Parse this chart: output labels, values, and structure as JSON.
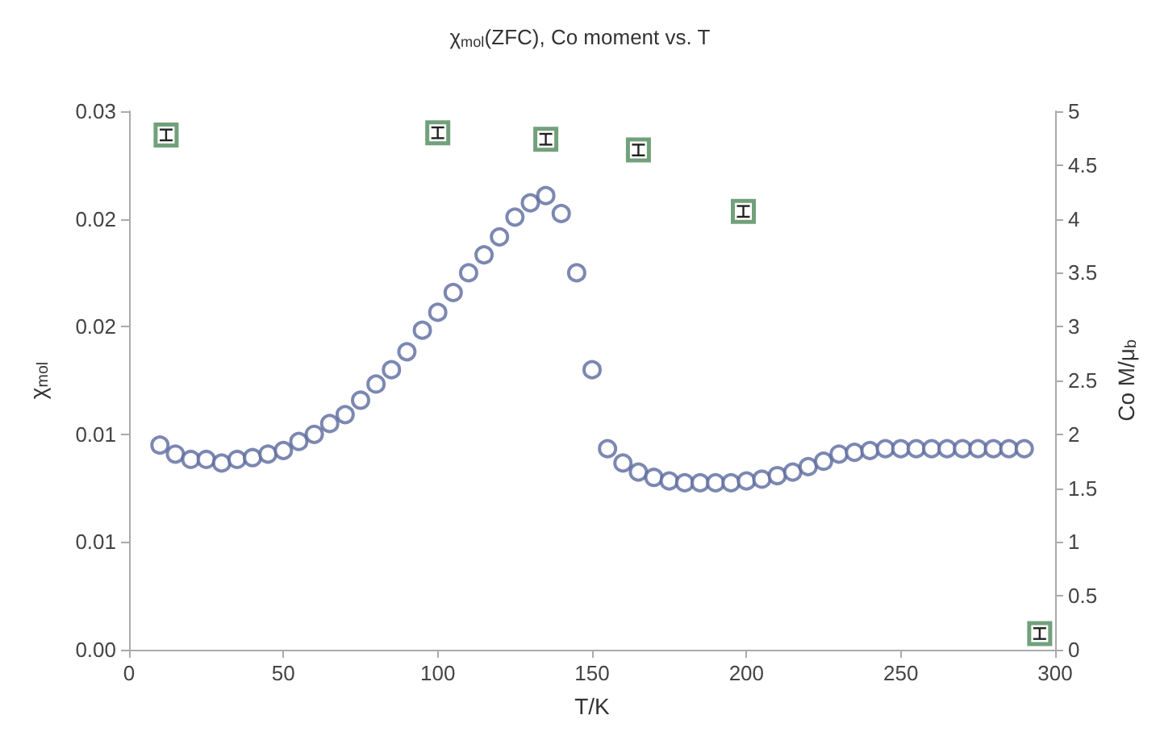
{
  "chart_data": {
    "type": "scatter",
    "title": "χ$_{mol}$(ZFC), Co moment vs. T",
    "xlabel": "T/K",
    "ylabel": "χ$_{mol}$",
    "y2label": "Co M/μ$_{b}$",
    "xlim": [
      0,
      300
    ],
    "xticks": [
      0,
      50,
      100,
      150,
      200,
      250,
      300
    ],
    "ylim": [
      0,
      0.03
    ],
    "yticks": [
      {
        "value": 0,
        "label": "0.00"
      },
      {
        "value": 0.006,
        "label": "0.01"
      },
      {
        "value": 0.012,
        "label": "0.01"
      },
      {
        "value": 0.018,
        "label": "0.02"
      },
      {
        "value": 0.024,
        "label": "0.02"
      },
      {
        "value": 0.03,
        "label": "0.03"
      }
    ],
    "y2lim": [
      0,
      5
    ],
    "y2ticks": [
      0,
      0.5,
      1,
      1.5,
      2,
      2.5,
      3,
      3.5,
      4,
      4.5,
      5
    ],
    "grid": false,
    "series": [
      {
        "color": "#5b6a9e",
        "marker": "circle",
        "x": [
          10,
          15,
          20,
          25,
          30,
          35,
          40,
          45,
          50,
          55,
          60,
          65,
          70,
          75,
          80,
          85,
          90,
          95,
          100,
          105,
          110,
          115,
          120,
          125,
          130,
          135,
          140,
          145,
          150,
          155,
          160,
          165,
          170,
          175,
          180,
          185,
          190,
          195,
          200,
          205,
          210,
          215,
          220,
          225,
          230,
          235,
          240,
          245,
          250,
          255,
          260,
          265,
          270,
          275,
          280,
          285,
          290
        ],
        "values": [
          0.0114,
          0.0109,
          0.0106,
          0.0106,
          0.0104,
          0.0106,
          0.0107,
          0.0109,
          0.0111,
          0.0116,
          0.012,
          0.0126,
          0.0131,
          0.0139,
          0.0148,
          0.0156,
          0.0166,
          0.0178,
          0.0188,
          0.0199,
          0.021,
          0.022,
          0.023,
          0.0241,
          0.0249,
          0.0253,
          0.0243,
          0.021,
          0.0156,
          0.0112,
          0.0104,
          0.0099,
          0.0096,
          0.0094,
          0.0093,
          0.0093,
          0.0093,
          0.0093,
          0.0094,
          0.0095,
          0.0097,
          0.0099,
          0.0102,
          0.0105,
          0.0109,
          0.011,
          0.0111,
          0.0112,
          0.0112,
          0.0112,
          0.0112,
          0.0112,
          0.0112,
          0.0112,
          0.0112,
          0.0112,
          0.0112
        ]
      },
      {
        "color": "#4e8a5a",
        "marker": "square",
        "axis": "y2",
        "x": [
          12,
          100,
          135,
          165,
          199,
          295
        ],
        "values": [
          4.78,
          4.8,
          4.74,
          4.64,
          4.07,
          0.15
        ],
        "errors": [
          0.05,
          0.05,
          0.05,
          0.05,
          0.05,
          0.05
        ]
      }
    ]
  }
}
